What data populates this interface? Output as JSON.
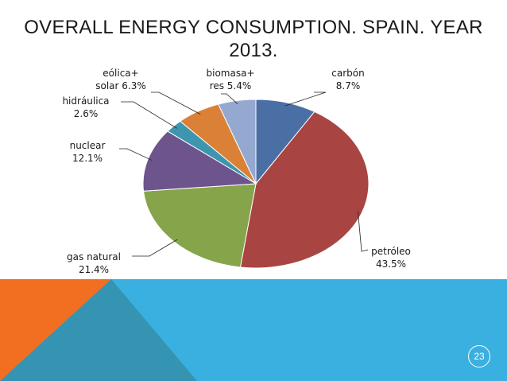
{
  "slide": {
    "title_line1": "OVERALL ENERGY CONSUMPTION. SPAIN. YEAR",
    "title_line2": "2013.",
    "page_number": "23"
  },
  "colors": {
    "footer_blue": "#3ab0e0",
    "footer_orange": "#f26f21",
    "footer_teal": "#3694b3"
  },
  "chart_data": {
    "type": "pie",
    "title": "OVERALL ENERGY CONSUMPTION. SPAIN. YEAR 2013.",
    "slices": [
      {
        "label_line1": "carbón",
        "label_line2": "8.7%",
        "name": "carbón",
        "value": 8.7,
        "color": "#4a6fa5"
      },
      {
        "label_line1": "petróleo",
        "label_line2": "43.5%",
        "name": "petróleo",
        "value": 43.5,
        "color": "#a84542"
      },
      {
        "label_line1": "gas natural",
        "label_line2": "21.4%",
        "name": "gas natural",
        "value": 21.4,
        "color": "#86a44a"
      },
      {
        "label_line1": "nuclear",
        "label_line2": "12.1%",
        "name": "nuclear",
        "value": 12.1,
        "color": "#6e548d"
      },
      {
        "label_line1": "hidráulica",
        "label_line2": "2.6%",
        "name": "hidráulica",
        "value": 2.6,
        "color": "#3d96ae"
      },
      {
        "label_line1": "eólica+",
        "label_line2": "solar 6.3%",
        "name": "eólica+ solar",
        "value": 6.3,
        "color": "#da8137"
      },
      {
        "label_line1": "biomasa+",
        "label_line2": "res 5.4%",
        "name": "biomasa+ res",
        "value": 5.4,
        "color": "#95a9d0"
      }
    ]
  }
}
